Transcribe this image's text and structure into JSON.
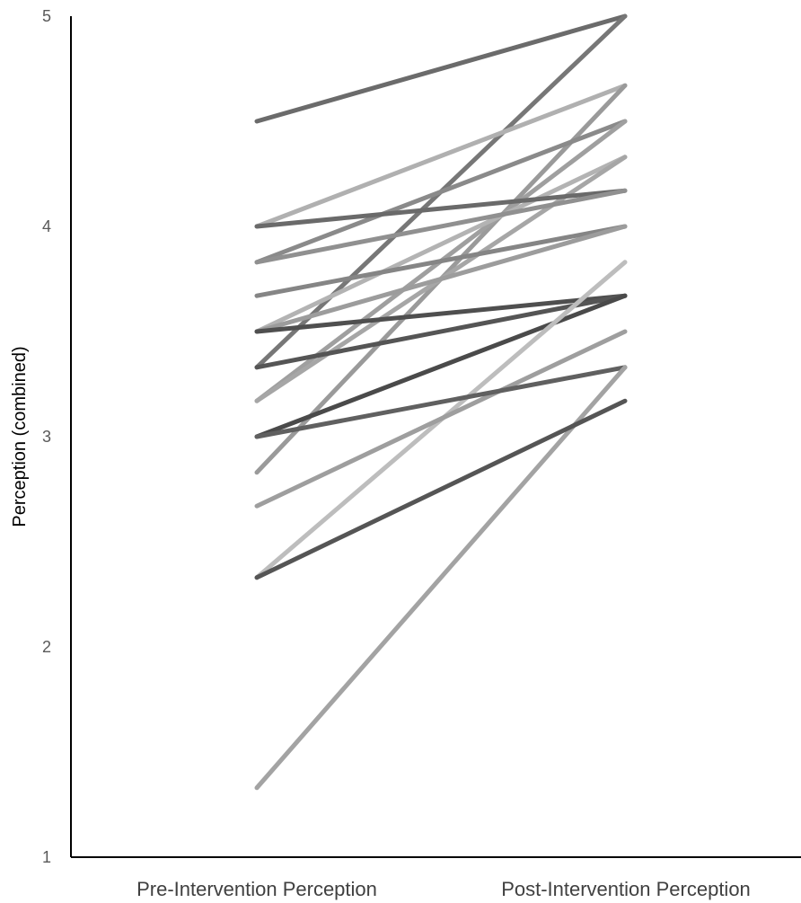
{
  "chart_data": {
    "type": "line",
    "title": "",
    "ylabel": "Perception (combined)",
    "xlabel": "",
    "categories": [
      "Pre-Intervention Perception",
      "Post-Intervention Perception"
    ],
    "ylim": [
      1,
      5
    ],
    "yticks": [
      "1",
      "2",
      "3",
      "4",
      "5"
    ],
    "grid": false,
    "legend": "none",
    "series": [
      {
        "values": [
          4.5,
          5.0
        ],
        "color": "#6b6b6b"
      },
      {
        "values": [
          3.33,
          5.0
        ],
        "color": "#777777"
      },
      {
        "values": [
          4.0,
          4.67
        ],
        "color": "#b0b0b0"
      },
      {
        "values": [
          2.83,
          4.67
        ],
        "color": "#9a9a9a"
      },
      {
        "values": [
          3.83,
          4.5
        ],
        "color": "#8a8a8a"
      },
      {
        "values": [
          3.17,
          4.5
        ],
        "color": "#9f9f9f"
      },
      {
        "values": [
          3.5,
          4.33
        ],
        "color": "#b3b3b3"
      },
      {
        "values": [
          3.17,
          4.33
        ],
        "color": "#a6a6a6"
      },
      {
        "values": [
          4.0,
          4.17
        ],
        "color": "#6a6a6a"
      },
      {
        "values": [
          3.83,
          4.17
        ],
        "color": "#909090"
      },
      {
        "values": [
          3.67,
          4.0
        ],
        "color": "#858585"
      },
      {
        "values": [
          3.5,
          4.0
        ],
        "color": "#9c9c9c"
      },
      {
        "values": [
          3.5,
          3.67
        ],
        "color": "#4f4f4f"
      },
      {
        "values": [
          3.33,
          3.67
        ],
        "color": "#555555"
      },
      {
        "values": [
          3.0,
          3.67
        ],
        "color": "#4a4a4a"
      },
      {
        "values": [
          2.33,
          3.83
        ],
        "color": "#bdbdbd"
      },
      {
        "values": [
          2.67,
          3.5
        ],
        "color": "#9e9e9e"
      },
      {
        "values": [
          3.0,
          3.33
        ],
        "color": "#606060"
      },
      {
        "values": [
          1.33,
          3.33
        ],
        "color": "#a3a3a3"
      },
      {
        "values": [
          2.33,
          3.17
        ],
        "color": "#555555"
      }
    ]
  }
}
